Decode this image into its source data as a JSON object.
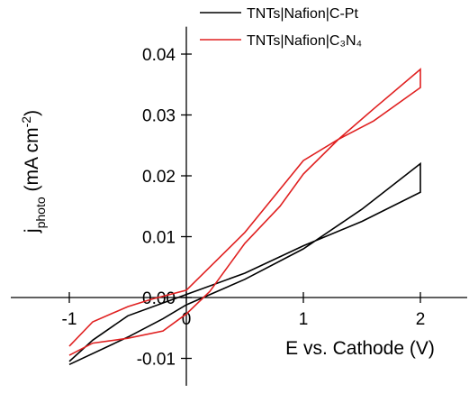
{
  "chart_data": {
    "type": "line",
    "x_label": "E vs. Cathode (V)",
    "y_label": [
      "j",
      "photo",
      " (mA cm",
      "-2",
      ")"
    ],
    "xlim": [
      -1.5,
      2.4
    ],
    "ylim": [
      -0.0145,
      0.0445
    ],
    "xticks": [
      -1,
      0,
      1,
      2
    ],
    "yticks": [
      {
        "value": -0.01,
        "label": "-0.01"
      },
      {
        "value": 0,
        "label": "0.00"
      },
      0.01,
      0.02,
      0.03,
      0.04
    ],
    "series": [
      {
        "name": "TNTs|Nafion|C-Pt",
        "color": "#000000",
        "x": [
          -1,
          -0.5,
          -0.2,
          0,
          0.5,
          1,
          1.5,
          2,
          2,
          1.5,
          1,
          0.5,
          0,
          -0.5,
          -0.8,
          -1
        ],
        "values": [
          -0.011,
          -0.0065,
          -0.0035,
          -0.0012,
          0.003,
          0.008,
          0.0145,
          0.022,
          0.0173,
          0.0125,
          0.0085,
          0.004,
          0.0005,
          -0.003,
          -0.007,
          -0.0105
        ]
      },
      {
        "name": "TNTs|Nafion|C₃N₄",
        "color": "#e02020",
        "x": [
          -1,
          -0.8,
          -0.5,
          -0.2,
          0,
          0.2,
          0.5,
          0.8,
          1,
          1.3,
          1.6,
          2,
          2,
          1.6,
          1.3,
          1,
          0.5,
          0.2,
          0,
          -0.3,
          -0.5,
          -0.8,
          -1
        ],
        "values": [
          -0.0095,
          -0.0075,
          -0.0067,
          -0.0055,
          -0.0027,
          0.001,
          0.0089,
          0.015,
          0.0203,
          0.026,
          0.031,
          0.0375,
          0.0345,
          0.029,
          0.026,
          0.0225,
          0.0107,
          0.005,
          0.0012,
          -0.0003,
          -0.0015,
          -0.004,
          -0.008
        ]
      }
    ]
  }
}
